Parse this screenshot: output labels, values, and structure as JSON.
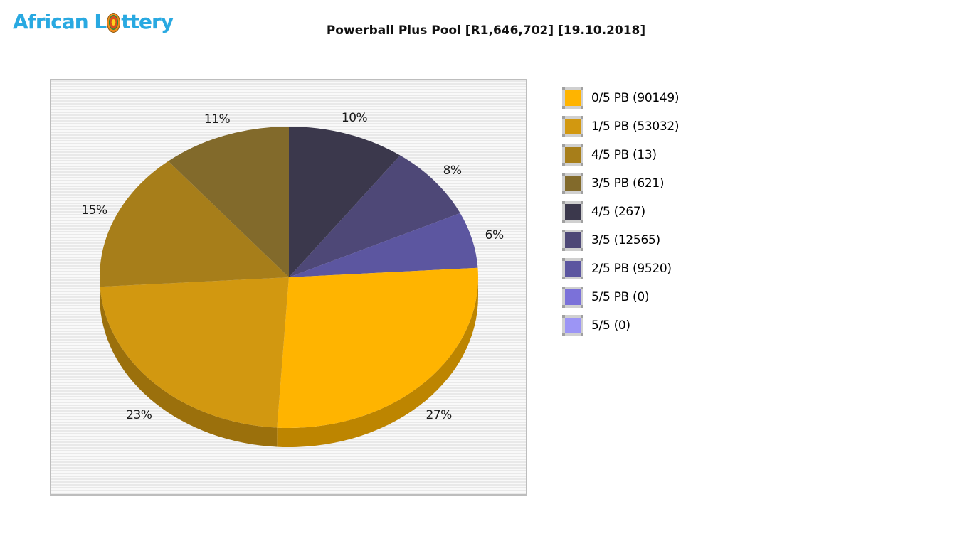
{
  "header": {
    "logo": {
      "full_text": "African Lottery",
      "part1": "African L",
      "part2": "ttery",
      "color": "#29a9e1"
    },
    "title": "Powerball Plus Pool [R1,646,702] [19.10.2018]"
  },
  "chart_data": {
    "type": "pie",
    "style": "3d",
    "title": "Powerball Plus Pool [R1,646,702] [19.10.2018]",
    "pool_amount": "R1,646,702",
    "draw_date": "19.10.2018",
    "legend_position": "right",
    "start_angle": "top",
    "direction": "clockwise",
    "slices": [
      {
        "label": "0/5 PB",
        "count": 90149,
        "legend_label": "0/5 PB (90149)",
        "percent": 27,
        "color": "#FFB400"
      },
      {
        "label": "1/5 PB",
        "count": 53032,
        "legend_label": "1/5 PB (53032)",
        "percent": 23,
        "color": "#D29810"
      },
      {
        "label": "4/5 PB",
        "count": 13,
        "legend_label": "4/5 PB (13)",
        "percent": 15,
        "color": "#A77E1A"
      },
      {
        "label": "3/5 PB",
        "count": 621,
        "legend_label": "3/5 PB (621)",
        "percent": 11,
        "color": "#826A2B"
      },
      {
        "label": "4/5",
        "count": 267,
        "legend_label": "4/5 (267)",
        "percent": 10,
        "color": "#3B384C"
      },
      {
        "label": "3/5",
        "count": 12565,
        "legend_label": "3/5 (12565)",
        "percent": 8,
        "color": "#4E4877"
      },
      {
        "label": "2/5 PB",
        "count": 9520,
        "legend_label": "2/5 PB (9520)",
        "percent": 6,
        "color": "#5C56A0"
      },
      {
        "label": "5/5 PB",
        "count": 0,
        "legend_label": "5/5 PB (0)",
        "percent": 0,
        "color": "#7B71D9"
      },
      {
        "label": "5/5",
        "count": 0,
        "legend_label": "5/5 (0)",
        "percent": 0,
        "color": "#9C95F5"
      }
    ],
    "pie_draw_order": [
      4,
      5,
      6,
      0,
      1,
      2,
      3
    ],
    "percent_labels": [
      "10%",
      "8%",
      "6%",
      "27%",
      "23%",
      "15%",
      "11%"
    ]
  }
}
